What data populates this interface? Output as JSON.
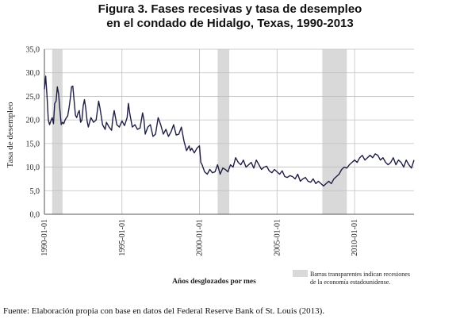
{
  "title_line1": "Figura 3. Fases recesivas y tasa de desempleo",
  "title_line2": "en el condado de Hidalgo, Texas, 1990-2013",
  "source": "Fuente: Elaboración propia con base en datos del Federal Reserve Bank of St. Louis (2013).",
  "colors": {
    "line": "#1f1f45",
    "recession": "#d9d9d9",
    "grid": "#bfbfbf",
    "axis": "#555555"
  },
  "chart_data": {
    "type": "line",
    "xlabel": "Años desglozados por mes",
    "ylabel": "Tasa de desempleo",
    "ylim": [
      0,
      35
    ],
    "xlim": [
      1990.0,
      2013.833
    ],
    "grid": true,
    "y_ticks": [
      "0,0",
      "5,0",
      "10,0",
      "15,0",
      "20,0",
      "25,0",
      "30,0",
      "35,0"
    ],
    "x_ticks": [
      {
        "label": "1990-01-01",
        "value": 1990
      },
      {
        "label": "1995-01-01",
        "value": 1995
      },
      {
        "label": "2000-01-01",
        "value": 2000
      },
      {
        "label": "2005-01-01",
        "value": 2005
      },
      {
        "label": "2010-01-01",
        "value": 2010
      }
    ],
    "legend": {
      "line1": "Barras transparentes indican recesiones",
      "line2": "de la economía estadounidense.",
      "placement": "bottom-right"
    },
    "recessions": [
      {
        "start": 1990.5,
        "end": 1991.17
      },
      {
        "start": 2001.17,
        "end": 2001.92
      },
      {
        "start": 2007.92,
        "end": 2009.5
      }
    ],
    "series": [
      {
        "x": [
          1990.0,
          1990.083,
          1990.167,
          1990.25,
          1990.333,
          1990.417,
          1990.5,
          1990.583,
          1990.667,
          1990.75,
          1990.833,
          1990.917,
          1991.0,
          1991.083,
          1991.167,
          1991.25,
          1991.333,
          1991.417,
          1991.5,
          1991.583,
          1991.667,
          1991.75,
          1991.833,
          1991.917,
          1992.0,
          1992.083,
          1992.167,
          1992.25,
          1992.333,
          1992.417,
          1992.5,
          1992.583,
          1992.667,
          1992.75,
          1992.833,
          1992.917,
          1993.0,
          1993.167,
          1993.333,
          1993.417,
          1993.5,
          1993.583,
          1993.75,
          1993.917,
          1994.0,
          1994.167,
          1994.333,
          1994.417,
          1994.5,
          1994.667,
          1994.833,
          1995.0,
          1995.167,
          1995.333,
          1995.417,
          1995.5,
          1995.667,
          1995.833,
          1996.0,
          1996.167,
          1996.333,
          1996.417,
          1996.5,
          1996.667,
          1996.833,
          1997.0,
          1997.167,
          1997.333,
          1997.5,
          1997.667,
          1997.833,
          1998.0,
          1998.167,
          1998.333,
          1998.5,
          1998.667,
          1998.833,
          1999.0,
          1999.167,
          1999.333,
          1999.417,
          1999.5,
          1999.667,
          1999.833,
          2000.0,
          2000.083,
          2000.167,
          2000.333,
          2000.5,
          2000.667,
          2000.833,
          2001.0,
          2001.167,
          2001.333,
          2001.5,
          2001.667,
          2001.833,
          2002.0,
          2002.167,
          2002.333,
          2002.5,
          2002.667,
          2002.833,
          2003.0,
          2003.167,
          2003.333,
          2003.5,
          2003.667,
          2003.833,
          2004.0,
          2004.167,
          2004.333,
          2004.5,
          2004.667,
          2004.833,
          2005.0,
          2005.167,
          2005.333,
          2005.5,
          2005.667,
          2005.833,
          2006.0,
          2006.167,
          2006.333,
          2006.5,
          2006.667,
          2006.833,
          2007.0,
          2007.167,
          2007.333,
          2007.5,
          2007.667,
          2007.833,
          2008.0,
          2008.167,
          2008.333,
          2008.5,
          2008.667,
          2008.833,
          2009.0,
          2009.167,
          2009.333,
          2009.5,
          2009.667,
          2009.833,
          2010.0,
          2010.167,
          2010.333,
          2010.5,
          2010.667,
          2010.833,
          2011.0,
          2011.167,
          2011.333,
          2011.5,
          2011.667,
          2011.833,
          2012.0,
          2012.167,
          2012.333,
          2012.5,
          2012.667,
          2012.833,
          2013.0,
          2013.167,
          2013.333,
          2013.5,
          2013.667,
          2013.833
        ],
        "values": [
          26.5,
          29.3,
          25.0,
          20.0,
          19.0,
          19.8,
          20.5,
          19.2,
          23.5,
          24.0,
          27.0,
          25.5,
          22.0,
          19.0,
          19.5,
          19.2,
          20.0,
          20.5,
          20.8,
          22.5,
          24.5,
          27.0,
          27.2,
          24.0,
          21.0,
          20.5,
          21.5,
          22.0,
          19.5,
          20.0,
          23.0,
          24.3,
          22.5,
          19.8,
          18.5,
          19.5,
          20.5,
          19.5,
          20.0,
          22.0,
          24.0,
          22.5,
          19.0,
          18.0,
          19.5,
          18.5,
          17.8,
          20.5,
          22.0,
          19.0,
          18.5,
          19.8,
          18.8,
          20.5,
          23.5,
          21.5,
          18.5,
          19.0,
          18.0,
          18.3,
          21.5,
          20.0,
          17.0,
          18.5,
          19.0,
          16.5,
          17.0,
          20.5,
          19.0,
          17.0,
          18.0,
          16.5,
          17.5,
          19.0,
          16.8,
          17.0,
          18.5,
          15.5,
          13.5,
          14.5,
          13.5,
          14.0,
          13.0,
          14.0,
          14.5,
          11.0,
          10.5,
          9.0,
          8.5,
          9.5,
          8.8,
          9.0,
          10.5,
          8.5,
          9.8,
          9.5,
          9.0,
          10.5,
          10.0,
          12.0,
          11.0,
          10.5,
          11.5,
          10.0,
          10.5,
          11.0,
          9.8,
          11.5,
          10.5,
          9.5,
          10.0,
          10.2,
          9.2,
          8.8,
          9.5,
          9.0,
          8.5,
          9.2,
          8.0,
          7.8,
          8.2,
          8.0,
          7.5,
          8.5,
          7.0,
          7.5,
          7.8,
          7.0,
          6.8,
          7.5,
          6.5,
          7.0,
          6.5,
          6.0,
          6.5,
          7.0,
          6.5,
          7.5,
          8.0,
          8.5,
          9.5,
          10.0,
          9.8,
          10.5,
          11.0,
          11.5,
          11.0,
          12.0,
          12.5,
          11.5,
          12.0,
          12.5,
          12.0,
          12.8,
          12.5,
          11.5,
          12.0,
          11.0,
          10.5,
          11.0,
          12.0,
          10.5,
          11.5,
          11.0,
          10.0,
          11.5,
          10.5,
          9.8,
          11.5
        ]
      }
    ]
  }
}
